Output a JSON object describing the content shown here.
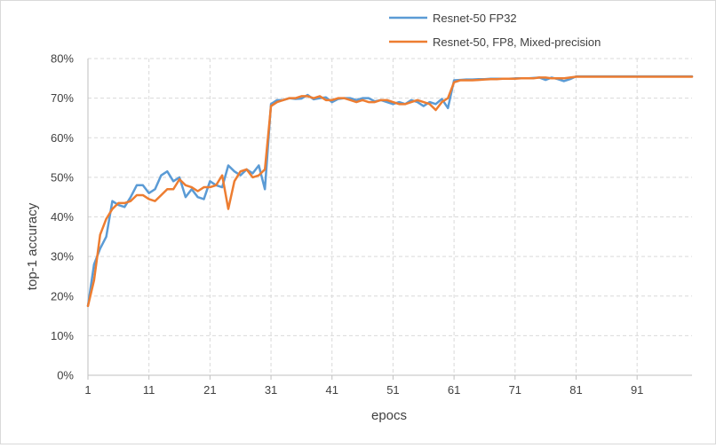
{
  "chart_data": {
    "type": "line",
    "xlabel": "epocs",
    "ylabel": "top-1 accuracy",
    "x_ticks": [
      "1",
      "11",
      "21",
      "31",
      "41",
      "51",
      "61",
      "71",
      "81",
      "91"
    ],
    "y_ticks": [
      "0%",
      "10%",
      "20%",
      "30%",
      "40%",
      "50%",
      "60%",
      "70%",
      "80%"
    ],
    "xlim": [
      1,
      100
    ],
    "ylim": [
      0,
      80
    ],
    "grid": true,
    "legend_position": "top-right",
    "series": [
      {
        "name": "Resnet-50 FP32",
        "color": "#5b9bd5",
        "points": [
          [
            1,
            17.5
          ],
          [
            2,
            28
          ],
          [
            3,
            32
          ],
          [
            4,
            35
          ],
          [
            5,
            44
          ],
          [
            6,
            43
          ],
          [
            7,
            42.5
          ],
          [
            8,
            45
          ],
          [
            9,
            48
          ],
          [
            10,
            48
          ],
          [
            11,
            46
          ],
          [
            12,
            47
          ],
          [
            13,
            50.5
          ],
          [
            14,
            51.5
          ],
          [
            15,
            49
          ],
          [
            16,
            50
          ],
          [
            17,
            45
          ],
          [
            18,
            47
          ],
          [
            19,
            45
          ],
          [
            20,
            44.5
          ],
          [
            21,
            49
          ],
          [
            22,
            48
          ],
          [
            23,
            47.5
          ],
          [
            24,
            53
          ],
          [
            25,
            51.5
          ],
          [
            26,
            50.5
          ],
          [
            27,
            52
          ],
          [
            28,
            51
          ],
          [
            29,
            53
          ],
          [
            30,
            47
          ],
          [
            31,
            68.5
          ],
          [
            32,
            69.5
          ],
          [
            33,
            69.5
          ],
          [
            34,
            70
          ],
          [
            35,
            69.8
          ],
          [
            36,
            69.9
          ],
          [
            37,
            70.8
          ],
          [
            38,
            69.7
          ],
          [
            39,
            70
          ],
          [
            40,
            70.2
          ],
          [
            41,
            69
          ],
          [
            42,
            69.8
          ],
          [
            43,
            70
          ],
          [
            44,
            70
          ],
          [
            45,
            69.5
          ],
          [
            46,
            70
          ],
          [
            47,
            70
          ],
          [
            48,
            69.2
          ],
          [
            49,
            69.5
          ],
          [
            50,
            69
          ],
          [
            51,
            68.5
          ],
          [
            52,
            69
          ],
          [
            53,
            68.5
          ],
          [
            54,
            69.5
          ],
          [
            55,
            69
          ],
          [
            56,
            68
          ],
          [
            57,
            69
          ],
          [
            58,
            68.5
          ],
          [
            59,
            69.8
          ],
          [
            60,
            67.5
          ],
          [
            61,
            74.5
          ],
          [
            62,
            74.6
          ],
          [
            63,
            74.7
          ],
          [
            64,
            74.7
          ],
          [
            65,
            74.8
          ],
          [
            66,
            74.8
          ],
          [
            67,
            74.9
          ],
          [
            68,
            74.9
          ],
          [
            69,
            74.9
          ],
          [
            70,
            74.9
          ],
          [
            71,
            75
          ],
          [
            72,
            75
          ],
          [
            73,
            75
          ],
          [
            74,
            75.1
          ],
          [
            75,
            75.2
          ],
          [
            76,
            74.6
          ],
          [
            77,
            75.2
          ],
          [
            78,
            74.8
          ],
          [
            79,
            74.3
          ],
          [
            80,
            74.8
          ],
          [
            81,
            75.5
          ],
          [
            82,
            75.5
          ],
          [
            83,
            75.5
          ],
          [
            84,
            75.5
          ],
          [
            85,
            75.5
          ],
          [
            86,
            75.5
          ],
          [
            87,
            75.5
          ],
          [
            88,
            75.5
          ],
          [
            89,
            75.5
          ],
          [
            90,
            75.5
          ],
          [
            91,
            75.5
          ],
          [
            92,
            75.5
          ],
          [
            93,
            75.5
          ],
          [
            94,
            75.5
          ],
          [
            95,
            75.5
          ],
          [
            96,
            75.5
          ],
          [
            97,
            75.5
          ],
          [
            98,
            75.5
          ],
          [
            99,
            75.5
          ],
          [
            100,
            75.5
          ]
        ]
      },
      {
        "name": "Resnet-50, FP8, Mixed-precision",
        "color": "#ed7d31",
        "points": [
          [
            1,
            17.5
          ],
          [
            2,
            24
          ],
          [
            3,
            35.5
          ],
          [
            4,
            39.5
          ],
          [
            5,
            42
          ],
          [
            6,
            43.5
          ],
          [
            7,
            43.5
          ],
          [
            8,
            44
          ],
          [
            9,
            45.5
          ],
          [
            10,
            45.5
          ],
          [
            11,
            44.5
          ],
          [
            12,
            44
          ],
          [
            13,
            45.5
          ],
          [
            14,
            47
          ],
          [
            15,
            47
          ],
          [
            16,
            49.5
          ],
          [
            17,
            48
          ],
          [
            18,
            47.5
          ],
          [
            19,
            46.5
          ],
          [
            20,
            47.5
          ],
          [
            21,
            47.5
          ],
          [
            22,
            48
          ],
          [
            23,
            50.5
          ],
          [
            24,
            42
          ],
          [
            25,
            49
          ],
          [
            26,
            51.5
          ],
          [
            27,
            52
          ],
          [
            28,
            50
          ],
          [
            29,
            50.5
          ],
          [
            30,
            52
          ],
          [
            31,
            68
          ],
          [
            32,
            69
          ],
          [
            33,
            69.5
          ],
          [
            34,
            70
          ],
          [
            35,
            70
          ],
          [
            36,
            70.5
          ],
          [
            37,
            70.5
          ],
          [
            38,
            70
          ],
          [
            39,
            70.5
          ],
          [
            40,
            69.5
          ],
          [
            41,
            69.5
          ],
          [
            42,
            70
          ],
          [
            43,
            70
          ],
          [
            44,
            69.5
          ],
          [
            45,
            69
          ],
          [
            46,
            69.5
          ],
          [
            47,
            69
          ],
          [
            48,
            69
          ],
          [
            49,
            69.5
          ],
          [
            50,
            69.5
          ],
          [
            51,
            69
          ],
          [
            52,
            68.5
          ],
          [
            53,
            68.5
          ],
          [
            54,
            69
          ],
          [
            55,
            69.5
          ],
          [
            56,
            69
          ],
          [
            57,
            68.5
          ],
          [
            58,
            67
          ],
          [
            59,
            69
          ],
          [
            60,
            70
          ],
          [
            61,
            74
          ],
          [
            62,
            74.5
          ],
          [
            63,
            74.5
          ],
          [
            64,
            74.5
          ],
          [
            65,
            74.6
          ],
          [
            66,
            74.7
          ],
          [
            67,
            74.8
          ],
          [
            68,
            74.8
          ],
          [
            69,
            74.9
          ],
          [
            70,
            74.9
          ],
          [
            71,
            74.9
          ],
          [
            72,
            75
          ],
          [
            73,
            75
          ],
          [
            74,
            75
          ],
          [
            75,
            75.2
          ],
          [
            76,
            75.2
          ],
          [
            77,
            75
          ],
          [
            78,
            75
          ],
          [
            79,
            75
          ],
          [
            80,
            75.2
          ],
          [
            81,
            75.4
          ],
          [
            82,
            75.4
          ],
          [
            83,
            75.4
          ],
          [
            84,
            75.4
          ],
          [
            85,
            75.4
          ],
          [
            86,
            75.4
          ],
          [
            87,
            75.4
          ],
          [
            88,
            75.4
          ],
          [
            89,
            75.4
          ],
          [
            90,
            75.4
          ],
          [
            91,
            75.4
          ],
          [
            92,
            75.4
          ],
          [
            93,
            75.4
          ],
          [
            94,
            75.4
          ],
          [
            95,
            75.4
          ],
          [
            96,
            75.4
          ],
          [
            97,
            75.4
          ],
          [
            98,
            75.4
          ],
          [
            99,
            75.4
          ],
          [
            100,
            75.4
          ]
        ]
      }
    ]
  }
}
